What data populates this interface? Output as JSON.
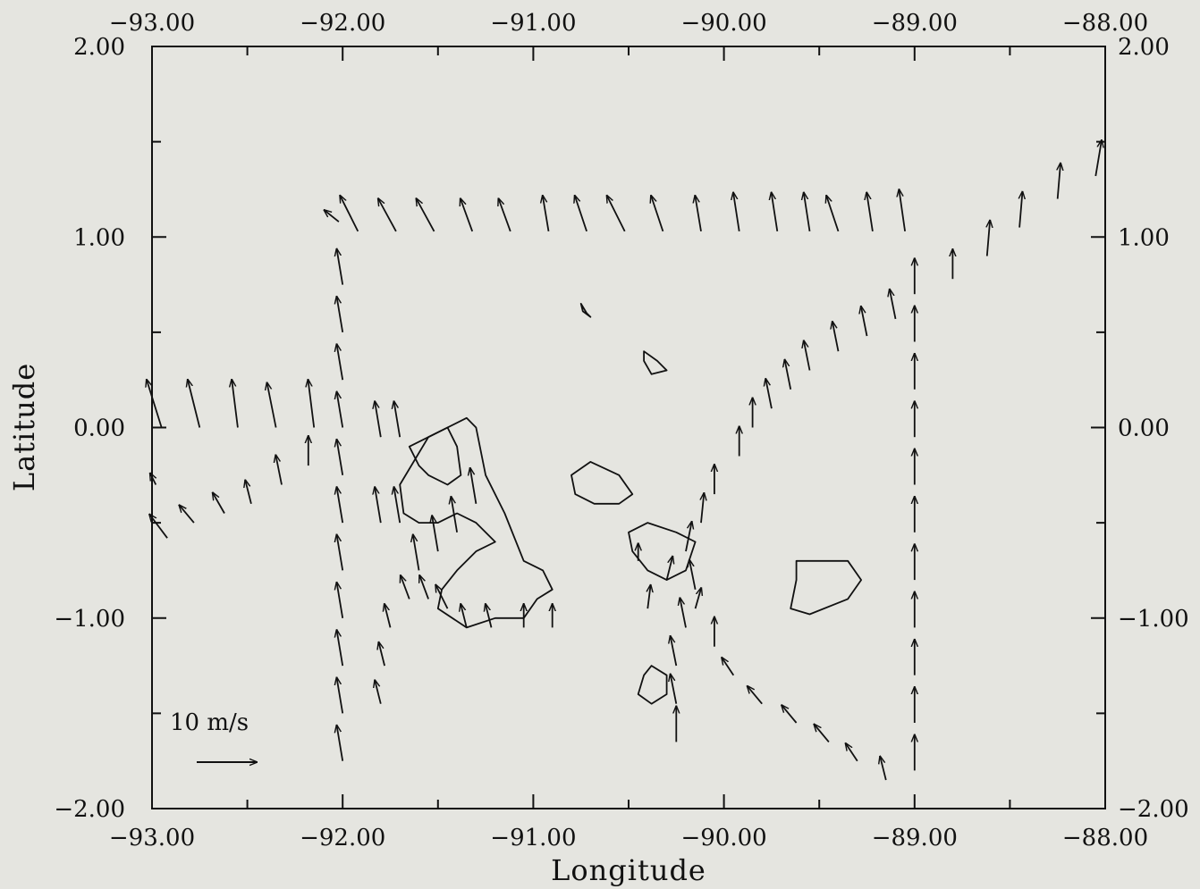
{
  "chart_data": {
    "type": "vector-field",
    "xlabel": "Longitude",
    "ylabel": "Latitude",
    "xlim": [
      -93.0,
      -88.0
    ],
    "ylim": [
      -2.0,
      2.0
    ],
    "x_ticks": [
      -93.0,
      -92.0,
      -91.0,
      -90.0,
      -89.0,
      -88.0
    ],
    "y_ticks": [
      -2.0,
      -1.0,
      0.0,
      1.0,
      2.0
    ],
    "x_tick_labels": [
      "-93.00",
      "-92.00",
      "-91.00",
      "-90.00",
      "-89.00",
      "-88.00"
    ],
    "y_tick_labels": [
      "-2.00",
      "-1.00",
      "0.00",
      "1.00",
      "2.00"
    ],
    "reference_vector": {
      "label": "10 m/s",
      "speed": 10,
      "u": 10,
      "v": 0
    },
    "vectors": [
      {
        "lon": -92.95,
        "lat": 0.0,
        "u": -2.5,
        "v": 8.0
      },
      {
        "lon": -92.75,
        "lat": 0.0,
        "u": -2.0,
        "v": 8.0
      },
      {
        "lon": -92.55,
        "lat": 0.0,
        "u": -1.0,
        "v": 8.0
      },
      {
        "lon": -92.35,
        "lat": 0.0,
        "u": -1.5,
        "v": 7.5
      },
      {
        "lon": -92.15,
        "lat": 0.0,
        "u": -1.0,
        "v": 8.0
      },
      {
        "lon": -92.92,
        "lat": -0.58,
        "u": -3.0,
        "v": 4.0
      },
      {
        "lon": -92.78,
        "lat": -0.5,
        "u": -2.5,
        "v": 3.0
      },
      {
        "lon": -92.62,
        "lat": -0.45,
        "u": -2.0,
        "v": 3.5
      },
      {
        "lon": -92.48,
        "lat": -0.4,
        "u": -1.0,
        "v": 4.0
      },
      {
        "lon": -92.32,
        "lat": -0.3,
        "u": -1.0,
        "v": 5.0
      },
      {
        "lon": -92.18,
        "lat": -0.2,
        "u": 0.0,
        "v": 5.0
      },
      {
        "lon": -92.98,
        "lat": -0.3,
        "u": -1.0,
        "v": 2.0
      },
      {
        "lon": -92.02,
        "lat": 1.08,
        "u": -2.5,
        "v": 2.0
      },
      {
        "lon": -91.92,
        "lat": 1.03,
        "u": -3.0,
        "v": 6.0
      },
      {
        "lon": -91.72,
        "lat": 1.03,
        "u": -3.0,
        "v": 5.5
      },
      {
        "lon": -91.52,
        "lat": 1.03,
        "u": -3.0,
        "v": 5.5
      },
      {
        "lon": -91.32,
        "lat": 1.03,
        "u": -2.0,
        "v": 5.5
      },
      {
        "lon": -91.12,
        "lat": 1.03,
        "u": -2.0,
        "v": 5.5
      },
      {
        "lon": -90.92,
        "lat": 1.03,
        "u": -1.0,
        "v": 6.0
      },
      {
        "lon": -90.72,
        "lat": 1.03,
        "u": -2.0,
        "v": 6.0
      },
      {
        "lon": -90.52,
        "lat": 1.03,
        "u": -3.0,
        "v": 6.0
      },
      {
        "lon": -90.32,
        "lat": 1.03,
        "u": -2.0,
        "v": 6.0
      },
      {
        "lon": -90.12,
        "lat": 1.03,
        "u": -1.0,
        "v": 6.0
      },
      {
        "lon": -89.92,
        "lat": 1.03,
        "u": -1.0,
        "v": 6.5
      },
      {
        "lon": -89.72,
        "lat": 1.03,
        "u": -1.0,
        "v": 6.5
      },
      {
        "lon": -89.55,
        "lat": 1.03,
        "u": -1.0,
        "v": 6.5
      },
      {
        "lon": -89.4,
        "lat": 1.03,
        "u": -2.0,
        "v": 6.0
      },
      {
        "lon": -89.22,
        "lat": 1.03,
        "u": -1.0,
        "v": 6.5
      },
      {
        "lon": -89.05,
        "lat": 1.03,
        "u": -1.0,
        "v": 7.0
      },
      {
        "lon": -88.8,
        "lat": 0.78,
        "u": 0.0,
        "v": 5.0
      },
      {
        "lon": -88.62,
        "lat": 0.9,
        "u": 0.5,
        "v": 6.0
      },
      {
        "lon": -88.45,
        "lat": 1.05,
        "u": 0.5,
        "v": 6.0
      },
      {
        "lon": -88.25,
        "lat": 1.2,
        "u": 0.5,
        "v": 6.0
      },
      {
        "lon": -88.05,
        "lat": 1.32,
        "u": 1.0,
        "v": 6.0
      },
      {
        "lon": -89.1,
        "lat": 0.57,
        "u": -1.0,
        "v": 5.0
      },
      {
        "lon": -89.25,
        "lat": 0.48,
        "u": -1.0,
        "v": 5.0
      },
      {
        "lon": -89.4,
        "lat": 0.4,
        "u": -1.0,
        "v": 5.0
      },
      {
        "lon": -89.55,
        "lat": 0.3,
        "u": -1.0,
        "v": 5.0
      },
      {
        "lon": -89.65,
        "lat": 0.2,
        "u": -1.0,
        "v": 5.0
      },
      {
        "lon": -89.75,
        "lat": 0.1,
        "u": -1.0,
        "v": 5.0
      },
      {
        "lon": -89.85,
        "lat": 0.0,
        "u": 0.0,
        "v": 5.0
      },
      {
        "lon": -89.92,
        "lat": -0.15,
        "u": 0.0,
        "v": 5.0
      },
      {
        "lon": -90.05,
        "lat": -0.35,
        "u": 0.0,
        "v": 5.0
      },
      {
        "lon": -90.12,
        "lat": -0.5,
        "u": 0.5,
        "v": 5.0
      },
      {
        "lon": -90.2,
        "lat": -0.65,
        "u": 1.0,
        "v": 5.0
      },
      {
        "lon": -90.25,
        "lat": -1.65,
        "u": 0.0,
        "v": 6.0
      },
      {
        "lon": -90.25,
        "lat": -1.45,
        "u": -1.0,
        "v": 5.0
      },
      {
        "lon": -90.25,
        "lat": -1.25,
        "u": -1.0,
        "v": 5.0
      },
      {
        "lon": -90.2,
        "lat": -1.05,
        "u": -1.0,
        "v": 5.0
      },
      {
        "lon": -90.15,
        "lat": -0.85,
        "u": -1.0,
        "v": 5.0
      },
      {
        "lon": -90.05,
        "lat": -1.15,
        "u": 0.0,
        "v": 5.0
      },
      {
        "lon": -89.95,
        "lat": -1.3,
        "u": -2.0,
        "v": 3.0
      },
      {
        "lon": -89.8,
        "lat": -1.45,
        "u": -2.5,
        "v": 3.0
      },
      {
        "lon": -89.62,
        "lat": -1.55,
        "u": -2.5,
        "v": 3.0
      },
      {
        "lon": -89.45,
        "lat": -1.65,
        "u": -2.5,
        "v": 3.0
      },
      {
        "lon": -89.3,
        "lat": -1.75,
        "u": -2.0,
        "v": 3.0
      },
      {
        "lon": -89.15,
        "lat": -1.85,
        "u": -1.0,
        "v": 4.0
      },
      {
        "lon": -89.0,
        "lat": -1.8,
        "u": 0.0,
        "v": 6.0
      },
      {
        "lon": -89.0,
        "lat": -1.55,
        "u": 0.0,
        "v": 6.0
      },
      {
        "lon": -89.0,
        "lat": -1.3,
        "u": 0.0,
        "v": 6.0
      },
      {
        "lon": -89.0,
        "lat": -1.05,
        "u": 0.0,
        "v": 6.0
      },
      {
        "lon": -89.0,
        "lat": -0.8,
        "u": 0.0,
        "v": 6.0
      },
      {
        "lon": -89.0,
        "lat": -0.55,
        "u": 0.0,
        "v": 6.0
      },
      {
        "lon": -89.0,
        "lat": -0.3,
        "u": 0.0,
        "v": 6.0
      },
      {
        "lon": -89.0,
        "lat": -0.05,
        "u": 0.0,
        "v": 6.0
      },
      {
        "lon": -89.0,
        "lat": 0.2,
        "u": 0.0,
        "v": 6.0
      },
      {
        "lon": -89.0,
        "lat": 0.45,
        "u": 0.0,
        "v": 6.0
      },
      {
        "lon": -89.0,
        "lat": 0.7,
        "u": 0.0,
        "v": 6.0
      },
      {
        "lon": -92.0,
        "lat": -1.75,
        "u": -1.0,
        "v": 6.0
      },
      {
        "lon": -92.0,
        "lat": -1.5,
        "u": -1.0,
        "v": 6.0
      },
      {
        "lon": -92.0,
        "lat": -1.25,
        "u": -1.0,
        "v": 6.0
      },
      {
        "lon": -92.0,
        "lat": -1.0,
        "u": -1.0,
        "v": 6.0
      },
      {
        "lon": -92.0,
        "lat": -0.75,
        "u": -1.0,
        "v": 6.0
      },
      {
        "lon": -92.0,
        "lat": -0.5,
        "u": -1.0,
        "v": 6.0
      },
      {
        "lon": -92.0,
        "lat": -0.25,
        "u": -1.0,
        "v": 6.0
      },
      {
        "lon": -92.0,
        "lat": 0.0,
        "u": -1.0,
        "v": 6.0
      },
      {
        "lon": -92.0,
        "lat": 0.25,
        "u": -1.0,
        "v": 6.0
      },
      {
        "lon": -92.0,
        "lat": 0.5,
        "u": -1.0,
        "v": 6.0
      },
      {
        "lon": -92.0,
        "lat": 0.75,
        "u": -1.0,
        "v": 6.0
      },
      {
        "lon": -91.8,
        "lat": -1.45,
        "u": -1.0,
        "v": 4.0
      },
      {
        "lon": -91.78,
        "lat": -1.25,
        "u": -1.0,
        "v": 4.0
      },
      {
        "lon": -91.75,
        "lat": -1.05,
        "u": -1.0,
        "v": 4.0
      },
      {
        "lon": -91.65,
        "lat": -0.9,
        "u": -1.5,
        "v": 4.0
      },
      {
        "lon": -91.55,
        "lat": -0.9,
        "u": -1.5,
        "v": 4.0
      },
      {
        "lon": -91.45,
        "lat": -0.95,
        "u": -2.0,
        "v": 4.0
      },
      {
        "lon": -91.35,
        "lat": -1.05,
        "u": -1.0,
        "v": 4.0
      },
      {
        "lon": -91.22,
        "lat": -1.05,
        "u": -1.0,
        "v": 4.0
      },
      {
        "lon": -91.05,
        "lat": -1.05,
        "u": 0.0,
        "v": 4.0
      },
      {
        "lon": -90.9,
        "lat": -1.05,
        "u": 0.0,
        "v": 4.0
      },
      {
        "lon": -91.8,
        "lat": -0.5,
        "u": -1.0,
        "v": 6.0
      },
      {
        "lon": -91.7,
        "lat": -0.5,
        "u": -1.0,
        "v": 6.0
      },
      {
        "lon": -91.6,
        "lat": -0.75,
        "u": -1.0,
        "v": 6.0
      },
      {
        "lon": -91.5,
        "lat": -0.65,
        "u": -1.0,
        "v": 6.0
      },
      {
        "lon": -91.4,
        "lat": -0.55,
        "u": -1.0,
        "v": 6.0
      },
      {
        "lon": -91.3,
        "lat": -0.4,
        "u": -1.0,
        "v": 6.0
      },
      {
        "lon": -91.8,
        "lat": -0.05,
        "u": -1.0,
        "v": 6.0
      },
      {
        "lon": -91.7,
        "lat": -0.05,
        "u": -1.0,
        "v": 6.0
      },
      {
        "lon": -90.4,
        "lat": -0.95,
        "u": 0.5,
        "v": 4.0
      },
      {
        "lon": -90.3,
        "lat": -0.8,
        "u": 1.0,
        "v": 4.0
      },
      {
        "lon": -90.15,
        "lat": -0.95,
        "u": 1.0,
        "v": 3.5
      },
      {
        "lon": -90.45,
        "lat": -0.7,
        "u": 0.0,
        "v": 3.0
      }
    ],
    "coastlines": [
      [
        [
          -91.7,
          -0.3
        ],
        [
          -91.55,
          -0.05
        ],
        [
          -91.35,
          0.05
        ],
        [
          -91.3,
          0.0
        ],
        [
          -91.25,
          -0.25
        ],
        [
          -91.15,
          -0.45
        ],
        [
          -91.05,
          -0.7
        ],
        [
          -90.95,
          -0.75
        ],
        [
          -90.9,
          -0.85
        ],
        [
          -90.98,
          -0.9
        ],
        [
          -91.05,
          -1.0
        ],
        [
          -91.2,
          -1.0
        ],
        [
          -91.35,
          -1.05
        ],
        [
          -91.5,
          -0.95
        ],
        [
          -91.48,
          -0.85
        ],
        [
          -91.4,
          -0.75
        ],
        [
          -91.3,
          -0.65
        ],
        [
          -91.2,
          -0.6
        ],
        [
          -91.3,
          -0.5
        ],
        [
          -91.4,
          -0.45
        ],
        [
          -91.5,
          -0.5
        ],
        [
          -91.6,
          -0.5
        ],
        [
          -91.68,
          -0.45
        ],
        [
          -91.7,
          -0.3
        ]
      ],
      [
        [
          -91.65,
          -0.1
        ],
        [
          -91.55,
          -0.05
        ],
        [
          -91.45,
          0.0
        ],
        [
          -91.4,
          -0.1
        ],
        [
          -91.38,
          -0.25
        ],
        [
          -91.45,
          -0.3
        ],
        [
          -91.55,
          -0.25
        ],
        [
          -91.6,
          -0.2
        ],
        [
          -91.65,
          -0.1
        ]
      ],
      [
        [
          -90.8,
          -0.25
        ],
        [
          -90.7,
          -0.18
        ],
        [
          -90.55,
          -0.25
        ],
        [
          -90.48,
          -0.35
        ],
        [
          -90.55,
          -0.4
        ],
        [
          -90.68,
          -0.4
        ],
        [
          -90.78,
          -0.35
        ],
        [
          -90.8,
          -0.25
        ]
      ],
      [
        [
          -90.5,
          -0.55
        ],
        [
          -90.4,
          -0.5
        ],
        [
          -90.25,
          -0.55
        ],
        [
          -90.15,
          -0.6
        ],
        [
          -90.2,
          -0.75
        ],
        [
          -90.3,
          -0.8
        ],
        [
          -90.4,
          -0.75
        ],
        [
          -90.48,
          -0.65
        ],
        [
          -90.5,
          -0.55
        ]
      ],
      [
        [
          -89.62,
          -0.7
        ],
        [
          -89.5,
          -0.7
        ],
        [
          -89.35,
          -0.7
        ],
        [
          -89.28,
          -0.8
        ],
        [
          -89.35,
          -0.9
        ],
        [
          -89.55,
          -0.98
        ],
        [
          -89.65,
          -0.95
        ],
        [
          -89.62,
          -0.8
        ],
        [
          -89.62,
          -0.7
        ]
      ],
      [
        [
          -90.42,
          0.4
        ],
        [
          -90.35,
          0.35
        ],
        [
          -90.3,
          0.3
        ],
        [
          -90.38,
          0.28
        ],
        [
          -90.42,
          0.35
        ],
        [
          -90.42,
          0.4
        ]
      ],
      [
        [
          -90.75,
          0.65
        ],
        [
          -90.72,
          0.6
        ],
        [
          -90.7,
          0.58
        ],
        [
          -90.74,
          0.61
        ],
        [
          -90.75,
          0.65
        ]
      ],
      [
        [
          -90.38,
          -1.25
        ],
        [
          -90.3,
          -1.3
        ],
        [
          -90.3,
          -1.4
        ],
        [
          -90.38,
          -1.45
        ],
        [
          -90.45,
          -1.4
        ],
        [
          -90.42,
          -1.3
        ],
        [
          -90.38,
          -1.25
        ]
      ]
    ]
  }
}
